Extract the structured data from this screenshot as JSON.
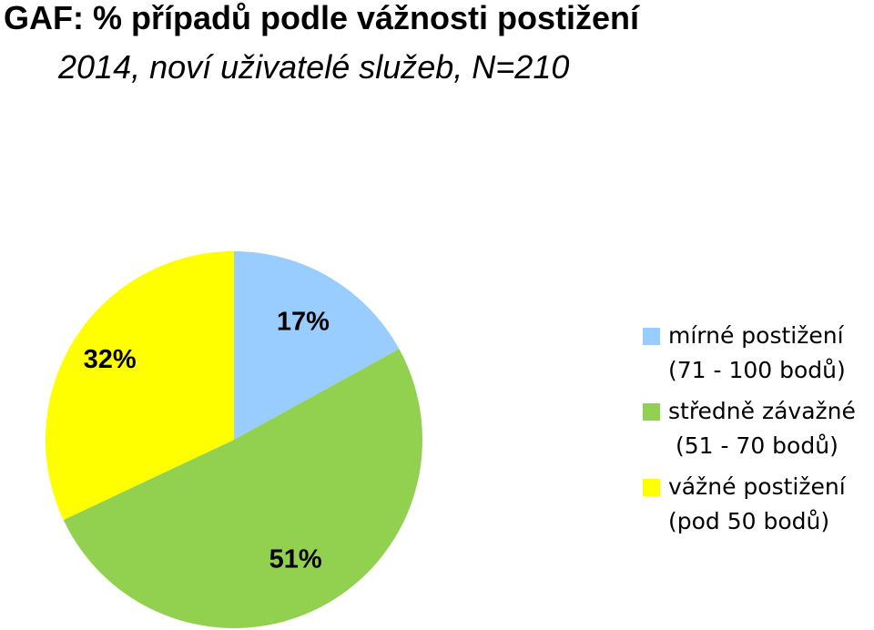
{
  "title": "GAF: % případů podle vážnosti postižení",
  "subtitle": "2014, noví uživatelé služeb, N=210",
  "chart_data": {
    "type": "pie",
    "title": "GAF: % případů podle vážnosti postižení",
    "subtitle": "2014, noví uživatelé služeb, N=210",
    "slices": [
      {
        "name": "mírné postižení (71 - 100 bodů)",
        "legend_lines": [
          "mírné postižení",
          "(71 - 100 bodů)"
        ],
        "value": 17,
        "label": "17%",
        "color": "#99ccff"
      },
      {
        "name": "středně závažné (51 - 70 bodů)",
        "legend_lines": [
          "středně závažné",
          " (51 - 70 bodů)"
        ],
        "value": 51,
        "label": "51%",
        "color": "#92d050"
      },
      {
        "name": "vážné postižení (pod 50 bodů)",
        "legend_lines": [
          "vážné postižení",
          "(pod 50 bodů)"
        ],
        "value": 32,
        "label": "32%",
        "color": "#ffff00"
      }
    ],
    "legend_position": "right"
  }
}
